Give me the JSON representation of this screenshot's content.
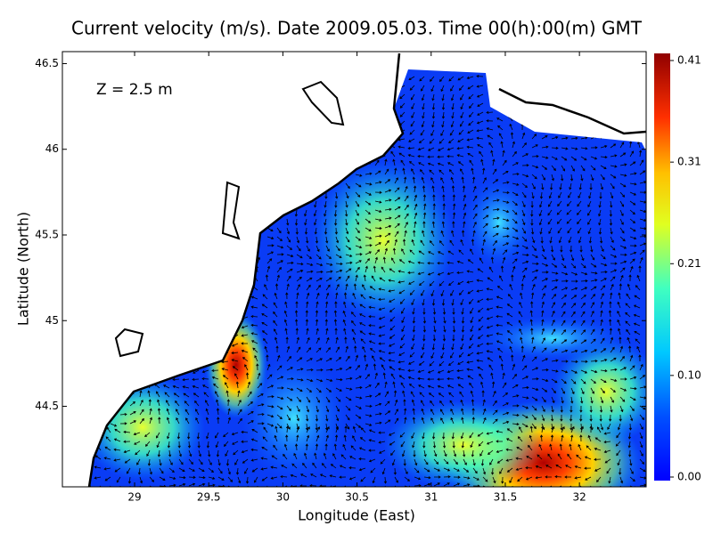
{
  "chart_data": {
    "type": "map",
    "title": "Current velocity (m/s). Date 2009.05.03. Time 00(h):00(m) GMT",
    "annotation": "Z = 2.5 m",
    "x_label": "Longitude (East)",
    "y_label": "Latitude (North)",
    "xlim": [
      28.513,
      32.45
    ],
    "ylim": [
      44.03,
      46.57
    ],
    "xticks": [
      29,
      29.5,
      30,
      30.5,
      31,
      31.5,
      32
    ],
    "yticks": [
      44.5,
      45,
      45.5,
      46,
      46.5
    ],
    "colorbar": {
      "lim": [
        0,
        0.41
      ],
      "ticks": [
        {
          "value": 0,
          "label": "0.00"
        },
        {
          "value": 0.1,
          "label": "0.10"
        },
        0.21,
        0.31,
        0.41
      ]
    }
  }
}
